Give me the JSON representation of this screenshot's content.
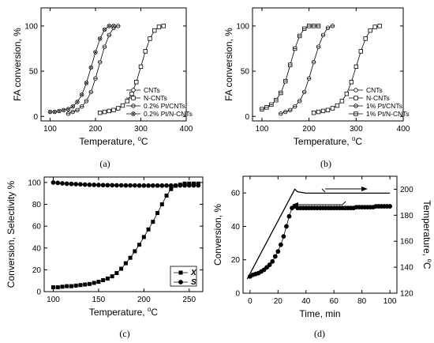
{
  "panels": [
    {
      "id": "a",
      "caption": "(a)",
      "chart_data": {
        "type": "line",
        "xlabel": "Temperature, ",
        "xlabel_sup": "o",
        "xlabel_unit": "C",
        "ylabel": "FA conversion, %",
        "xlim": [
          80,
          400
        ],
        "ylim": [
          -5,
          120
        ],
        "xticks": [
          100,
          200,
          300,
          400
        ],
        "yticks": [
          0,
          50,
          100
        ],
        "legend_position": "bottom-right",
        "series": [
          {
            "name": "CNTs",
            "marker": "circle",
            "x": [],
            "y": []
          },
          {
            "name": "N-CNTs",
            "marker": "square",
            "x": [
              210,
              220,
              230,
              240,
              250,
              260,
              270,
              280,
              290,
              300,
              310,
              320,
              330,
              340,
              350
            ],
            "y": [
              4,
              5,
              6,
              7,
              9,
              12,
              17,
              25,
              38,
              55,
              72,
              86,
              95,
              99,
              100
            ]
          },
          {
            "name": "0.2% Pt/CNTs",
            "marker": "circle-minus",
            "x": [
              140,
              150,
              160,
              170,
              180,
              190,
              200,
              210,
              220,
              230,
              240,
              250
            ],
            "y": [
              3,
              5,
              7,
              11,
              17,
              27,
              42,
              60,
              77,
              90,
              98,
              100
            ]
          },
          {
            "name": "0.2% Pt/N-CNTs",
            "marker": "circle-x",
            "x": [
              100,
              110,
              120,
              130,
              140,
              150,
              160,
              170,
              180,
              190,
              200,
              210,
              220,
              230,
              240
            ],
            "y": [
              5,
              5,
              6,
              7,
              8,
              11,
              16,
              24,
              37,
              54,
              71,
              86,
              96,
              100,
              100
            ]
          }
        ]
      }
    },
    {
      "id": "b",
      "caption": "(b)",
      "chart_data": {
        "type": "line",
        "xlabel": "Temperature, ",
        "xlabel_sup": "o",
        "xlabel_unit": "C",
        "ylabel": "FA conversion, %",
        "xlim": [
          80,
          400
        ],
        "ylim": [
          -5,
          120
        ],
        "xticks": [
          100,
          200,
          300,
          400
        ],
        "yticks": [
          0,
          50,
          100
        ],
        "legend_position": "bottom-right",
        "series": [
          {
            "name": "CNTs",
            "marker": "circle",
            "x": [],
            "y": []
          },
          {
            "name": "N-CNTs",
            "marker": "square",
            "x": [
              210,
              220,
              230,
              240,
              250,
              260,
              270,
              280,
              290,
              300,
              310,
              320,
              330,
              340,
              350
            ],
            "y": [
              4,
              5,
              6,
              7,
              9,
              12,
              17,
              25,
              38,
              55,
              72,
              86,
              95,
              99,
              100
            ]
          },
          {
            "name": "1% Pt/CNTs",
            "marker": "circle-minus",
            "x": [
              140,
              150,
              160,
              170,
              180,
              190,
              200,
              210,
              220,
              230,
              240,
              250
            ],
            "y": [
              3,
              5,
              7,
              11,
              17,
              27,
              42,
              60,
              77,
              90,
              98,
              100
            ]
          },
          {
            "name": "1% Pt/N-CNTs",
            "marker": "square-minus",
            "x": [
              100,
              110,
              120,
              130,
              140,
              150,
              160,
              170,
              180,
              190,
              200,
              210,
              220
            ],
            "y": [
              8,
              10,
              13,
              18,
              26,
              39,
              57,
              75,
              89,
              97,
              100,
              100,
              100
            ]
          }
        ]
      }
    },
    {
      "id": "c",
      "caption": "(c)",
      "chart_data": {
        "type": "line",
        "xlabel": "Temperature, ",
        "xlabel_sup": "o",
        "xlabel_unit": "C",
        "ylabel": "Conversion, Selectivity %",
        "xlim": [
          90,
          265
        ],
        "ylim": [
          0,
          105
        ],
        "xticks": [
          100,
          150,
          200,
          250
        ],
        "yticks": [
          0,
          20,
          40,
          60,
          80,
          100
        ],
        "legend_position": "bottom-right",
        "series": [
          {
            "name": "X",
            "marker": "filled-square",
            "x": [
              100,
              105,
              110,
              115,
              120,
              125,
              130,
              135,
              140,
              145,
              150,
              155,
              160,
              165,
              170,
              175,
              180,
              185,
              190,
              195,
              200,
              205,
              210,
              215,
              220,
              225,
              230,
              235,
              240,
              245,
              250,
              255,
              260
            ],
            "y": [
              4,
              4,
              4.5,
              5,
              5,
              5.5,
              6,
              6.5,
              7,
              8,
              9,
              10.5,
              12,
              14,
              17,
              21,
              26,
              31,
              37,
              43,
              50,
              57,
              64,
              72,
              80,
              88,
              94,
              97,
              98,
              99,
              99,
              99,
              99
            ]
          },
          {
            "name": "S",
            "marker": "filled-circle",
            "x": [
              100,
              105,
              110,
              115,
              120,
              125,
              130,
              135,
              140,
              145,
              150,
              155,
              160,
              165,
              170,
              175,
              180,
              185,
              190,
              195,
              200,
              205,
              210,
              215,
              220,
              225,
              230,
              235,
              240,
              245,
              250,
              255,
              260
            ],
            "y": [
              100,
              99.6,
              99.2,
              98.9,
              98.7,
              98.5,
              98.3,
              98.1,
              97.9,
              97.8,
              97.7,
              97.6,
              97.5,
              97.5,
              97.4,
              97.4,
              97.3,
              97.3,
              97.3,
              97.2,
              97.2,
              97.2,
              97.2,
              97.2,
              97.2,
              97.2,
              97.2,
              97.2,
              97.3,
              97.3,
              97.3,
              97.3,
              97.3
            ]
          }
        ]
      }
    },
    {
      "id": "d",
      "caption": "(d)",
      "chart_data": {
        "type": "line",
        "xlabel": "Time, min",
        "ylabel": "Conversion, %",
        "y2label": "Temperature, ",
        "y2label_sup": "o",
        "y2label_unit": "C",
        "xlim": [
          -5,
          105
        ],
        "ylim": [
          0,
          70
        ],
        "y2lim": [
          120,
          210
        ],
        "xticks": [
          0,
          20,
          40,
          60,
          80,
          100
        ],
        "yticks": [
          0,
          20,
          40,
          60
        ],
        "y2ticks": [
          120,
          140,
          160,
          180,
          200
        ],
        "series": [
          {
            "name": "",
            "axis": "left",
            "marker": "filled-circle",
            "x": [
              0,
              2,
              4,
              6,
              8,
              10,
              12,
              14,
              16,
              18,
              20,
              22,
              24,
              26,
              28,
              30,
              32,
              34,
              36,
              38,
              40,
              42,
              44,
              46,
              48,
              50,
              52,
              54,
              56,
              58,
              60,
              62,
              64,
              66,
              68,
              70,
              72,
              74,
              76,
              78,
              80,
              82,
              84,
              86,
              88,
              90,
              92,
              94,
              96,
              98,
              100
            ],
            "y": [
              10,
              11,
              11.5,
              12,
              13,
              14,
              15.5,
              17,
              19,
              22,
              25,
              29,
              34,
              40,
              46,
              51,
              52,
              51,
              51,
              51,
              51,
              51,
              51,
              51,
              51,
              51,
              51,
              51,
              51,
              51,
              51,
              51,
              51,
              51,
              51,
              51,
              51,
              51,
              51.5,
              51.5,
              51.5,
              51.5,
              51.5,
              51.5,
              51.5,
              52,
              52,
              52,
              52,
              52,
              52
            ]
          },
          {
            "name": "",
            "axis": "right",
            "marker": "none",
            "x": [
              -2,
              32,
              34,
              40,
              100
            ],
            "y": [
              131,
              200,
              198,
              197,
              197
            ]
          }
        ]
      }
    }
  ]
}
